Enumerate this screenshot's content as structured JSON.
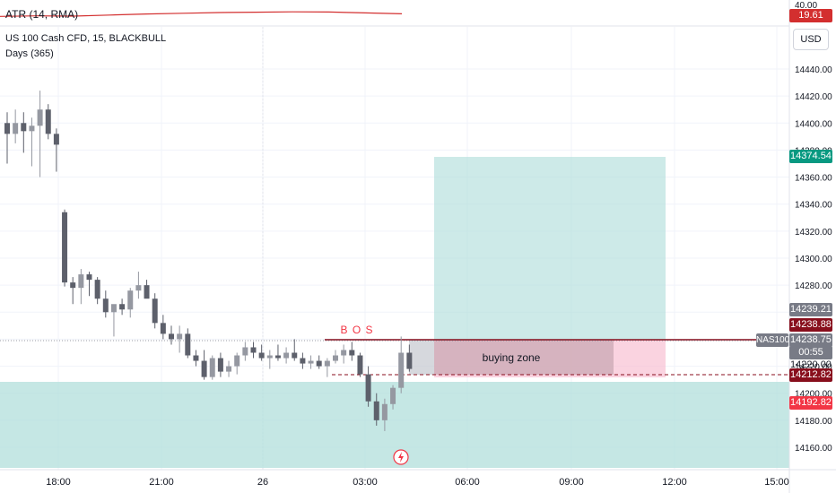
{
  "indicator": {
    "label": "ATR (14, RMA)",
    "value": "19.61",
    "scale_top": "40.00",
    "color": "#d32f2f"
  },
  "symbol": {
    "title": "US 100 Cash CFD, 15, BLACKBULL",
    "study": "Days (365)",
    "ticker": "NAS100"
  },
  "currency_button": "USD",
  "price_axis": {
    "ticks": [
      14440,
      14420,
      14400,
      14380,
      14360,
      14340,
      14320,
      14300,
      14280,
      14260,
      14240,
      14220,
      14200,
      14180,
      14160
    ],
    "tick_labels": [
      "14440.00",
      "14420.00",
      "14400.00",
      "14380.00",
      "14360.00",
      "14340.00",
      "14320.00",
      "14300.00",
      "14280.00",
      "14260.00",
      "14240.00",
      "14220.00",
      "14200.00",
      "14180.00",
      "14160.00"
    ]
  },
  "time_axis": {
    "labels": [
      "18:00",
      "21:00",
      "26",
      "03:00",
      "06:00",
      "09:00",
      "12:00",
      "15:00"
    ]
  },
  "price_tags": {
    "target": {
      "text": "14374.54",
      "color": "#089981"
    },
    "high": {
      "text": "14239.21",
      "color": "#787b86"
    },
    "entry": {
      "text": "14238.88",
      "color": "#880e1c"
    },
    "last": {
      "text": "14238.75",
      "color": "#787b86"
    },
    "countdown": "00:55",
    "partial": "14220.00",
    "dashed": {
      "text": "14212.82",
      "color": "#880e1c"
    },
    "stop": {
      "text": "14192.82",
      "color": "#f23645"
    }
  },
  "annotations": {
    "bos": "B O S",
    "zone": "buying zone"
  },
  "colors": {
    "up": "#9598a1",
    "down": "#5d606b",
    "profit_fill": "#b2dfdb",
    "loss_fill": "#f8bbd0",
    "zone_fill": "#c5c8ce",
    "lower_zone": "#b2dfdb"
  },
  "chart_data": {
    "type": "candlestick",
    "y_range": [
      14145,
      14450
    ],
    "candles": [
      {
        "t": 0,
        "o": 14400,
        "h": 14408,
        "l": 14370,
        "c": 14392
      },
      {
        "t": 1,
        "o": 14392,
        "h": 14410,
        "l": 14385,
        "c": 14400
      },
      {
        "t": 2,
        "o": 14400,
        "h": 14408,
        "l": 14378,
        "c": 14394
      },
      {
        "t": 3,
        "o": 14394,
        "h": 14404,
        "l": 14368,
        "c": 14398
      },
      {
        "t": 4,
        "o": 14398,
        "h": 14424,
        "l": 14360,
        "c": 14410
      },
      {
        "t": 5,
        "o": 14410,
        "h": 14414,
        "l": 14388,
        "c": 14392
      },
      {
        "t": 6,
        "o": 14392,
        "h": 14396,
        "l": 14364,
        "c": 14384
      },
      {
        "t": 7,
        "o": 14334,
        "h": 14336,
        "l": 14279,
        "c": 14282
      },
      {
        "t": 8,
        "o": 14282,
        "h": 14286,
        "l": 14266,
        "c": 14278
      },
      {
        "t": 9,
        "o": 14278,
        "h": 14292,
        "l": 14266,
        "c": 14288
      },
      {
        "t": 10,
        "o": 14288,
        "h": 14290,
        "l": 14272,
        "c": 14284
      },
      {
        "t": 11,
        "o": 14284,
        "h": 14286,
        "l": 14266,
        "c": 14270
      },
      {
        "t": 12,
        "o": 14270,
        "h": 14276,
        "l": 14256,
        "c": 14260
      },
      {
        "t": 13,
        "o": 14260,
        "h": 14264,
        "l": 14242,
        "c": 14266
      },
      {
        "t": 14,
        "o": 14266,
        "h": 14270,
        "l": 14258,
        "c": 14262
      },
      {
        "t": 15,
        "o": 14262,
        "h": 14278,
        "l": 14256,
        "c": 14276
      },
      {
        "t": 16,
        "o": 14276,
        "h": 14290,
        "l": 14270,
        "c": 14280
      },
      {
        "t": 17,
        "o": 14280,
        "h": 14284,
        "l": 14272,
        "c": 14270
      },
      {
        "t": 18,
        "o": 14270,
        "h": 14274,
        "l": 14248,
        "c": 14252
      },
      {
        "t": 19,
        "o": 14252,
        "h": 14258,
        "l": 14240,
        "c": 14244
      },
      {
        "t": 20,
        "o": 14244,
        "h": 14250,
        "l": 14236,
        "c": 14240
      },
      {
        "t": 21,
        "o": 14240,
        "h": 14250,
        "l": 14230,
        "c": 14244
      },
      {
        "t": 22,
        "o": 14244,
        "h": 14248,
        "l": 14226,
        "c": 14228
      },
      {
        "t": 23,
        "o": 14228,
        "h": 14232,
        "l": 14220,
        "c": 14224
      },
      {
        "t": 24,
        "o": 14224,
        "h": 14232,
        "l": 14210,
        "c": 14212
      },
      {
        "t": 25,
        "o": 14212,
        "h": 14228,
        "l": 14210,
        "c": 14226
      },
      {
        "t": 26,
        "o": 14226,
        "h": 14230,
        "l": 14212,
        "c": 14216
      },
      {
        "t": 27,
        "o": 14216,
        "h": 14224,
        "l": 14212,
        "c": 14220
      },
      {
        "t": 28,
        "o": 14220,
        "h": 14230,
        "l": 14214,
        "c": 14228
      },
      {
        "t": 29,
        "o": 14228,
        "h": 14238,
        "l": 14224,
        "c": 14234
      },
      {
        "t": 30,
        "o": 14234,
        "h": 14238,
        "l": 14226,
        "c": 14230
      },
      {
        "t": 31,
        "o": 14230,
        "h": 14236,
        "l": 14224,
        "c": 14226
      },
      {
        "t": 32,
        "o": 14226,
        "h": 14232,
        "l": 14218,
        "c": 14228
      },
      {
        "t": 33,
        "o": 14228,
        "h": 14236,
        "l": 14224,
        "c": 14226
      },
      {
        "t": 34,
        "o": 14226,
        "h": 14234,
        "l": 14222,
        "c": 14230
      },
      {
        "t": 35,
        "o": 14230,
        "h": 14240,
        "l": 14224,
        "c": 14226
      },
      {
        "t": 36,
        "o": 14226,
        "h": 14230,
        "l": 14218,
        "c": 14222
      },
      {
        "t": 37,
        "o": 14222,
        "h": 14228,
        "l": 14218,
        "c": 14224
      },
      {
        "t": 38,
        "o": 14224,
        "h": 14228,
        "l": 14218,
        "c": 14220
      },
      {
        "t": 39,
        "o": 14220,
        "h": 14226,
        "l": 14212,
        "c": 14224
      },
      {
        "t": 40,
        "o": 14224,
        "h": 14232,
        "l": 14222,
        "c": 14228
      },
      {
        "t": 41,
        "o": 14228,
        "h": 14236,
        "l": 14222,
        "c": 14232
      },
      {
        "t": 42,
        "o": 14232,
        "h": 14238,
        "l": 14224,
        "c": 14228
      },
      {
        "t": 43,
        "o": 14228,
        "h": 14230,
        "l": 14212,
        "c": 14214
      },
      {
        "t": 44,
        "o": 14214,
        "h": 14220,
        "l": 14190,
        "c": 14194
      },
      {
        "t": 45,
        "o": 14194,
        "h": 14200,
        "l": 14176,
        "c": 14180
      },
      {
        "t": 46,
        "o": 14180,
        "h": 14196,
        "l": 14172,
        "c": 14192
      },
      {
        "t": 47,
        "o": 14192,
        "h": 14206,
        "l": 14188,
        "c": 14204
      },
      {
        "t": 48,
        "o": 14204,
        "h": 14242,
        "l": 14200,
        "c": 14230
      },
      {
        "t": 49,
        "o": 14230,
        "h": 14236,
        "l": 14216,
        "c": 14218
      }
    ],
    "atr_line": [
      0.54,
      0.46,
      0.5,
      0.35,
      0.2,
      0.1,
      0.0,
      -0.05,
      -0.1,
      -0.08,
      0.05,
      0.18
    ],
    "position": {
      "entry": 14238.88,
      "target": 14374.54,
      "stop": 14192.82
    },
    "zone": {
      "top": 14238.88,
      "bottom": 14212.82
    }
  }
}
